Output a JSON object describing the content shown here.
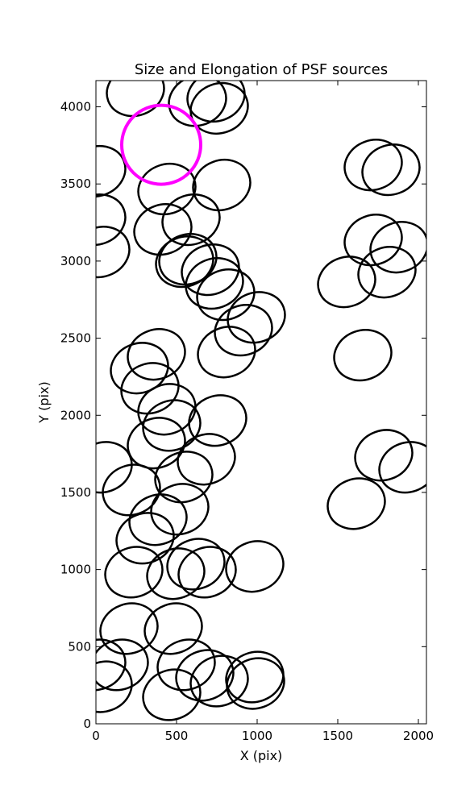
{
  "chart_data": {
    "type": "ellipse",
    "title": "Size and Elongation of PSF sources",
    "x_label": "X (pix)",
    "y_label": "Y (pix)",
    "xlim": [
      0,
      2050
    ],
    "ylim": [
      0,
      4170
    ],
    "xticks": [
      0,
      500,
      1000,
      1500,
      2000
    ],
    "yticks": [
      0,
      500,
      1000,
      1500,
      2000,
      2500,
      3000,
      3500,
      4000
    ],
    "grid": false,
    "series": [
      {
        "color": "#000000",
        "line_width": 2.5,
        "width": 360,
        "height": 320,
        "angle": -20,
        "x": [
          245,
          630,
          745,
          765,
          5,
          440,
          780,
          5,
          590,
          415,
          30,
          550,
          570,
          710,
          735,
          805,
          995,
          915,
          810,
          375,
          270,
          335,
          440,
          470,
          755,
          375,
          685,
          545,
          45,
          220,
          520,
          385,
          305,
          235,
          495,
          620,
          690,
          985,
          205,
          480,
          5,
          145,
          560,
          45,
          470,
          675,
          765,
          985,
          990,
          1720,
          1830,
          1555,
          1720,
          1880,
          1805,
          1655,
          1785,
          1935,
          1615
        ],
        "y": [
          4104,
          4040,
          4068,
          3990,
          3582,
          3467,
          3493,
          3268,
          3268,
          3205,
          3059,
          2996,
          3012,
          2944,
          2855,
          2782,
          2635,
          2552,
          2410,
          2395,
          2306,
          2175,
          2039,
          1934,
          1966,
          1820,
          1715,
          1600,
          1663,
          1516,
          1391,
          1323,
          1203,
          983,
          973,
          1035,
          983,
          1020,
          617,
          617,
          382,
          382,
          382,
          240,
          188,
          314,
          277,
          303,
          261,
          3623,
          3592,
          2865,
          3137,
          3090,
          2928,
          2390,
          1741,
          1663,
          1427
        ]
      },
      {
        "color": "#ff00ff",
        "line_width": 4,
        "width": 490,
        "height": 512,
        "angle": 0,
        "x": [
          405
        ],
        "y": [
          3754
        ]
      }
    ]
  }
}
